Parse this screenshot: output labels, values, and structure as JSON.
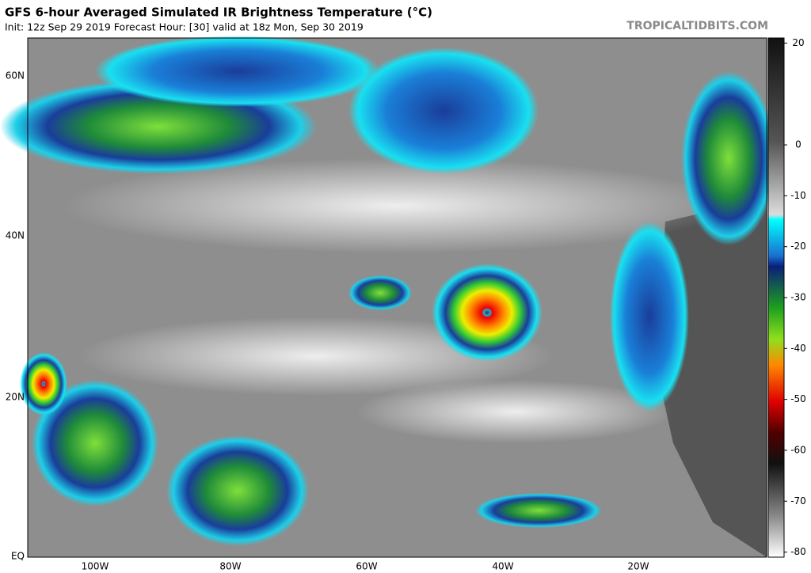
{
  "header": {
    "title": "GFS 6-hour Averaged Simulated IR Brightness Temperature (°C)",
    "subtitle": "Init: 12z Sep 29 2019   Forecast Hour: [30]   valid at 18z Mon, Sep 30 2019",
    "watermark": "TROPICALTIDBITS.COM"
  },
  "map": {
    "lat_labels": [
      "60N",
      "40N",
      "20N",
      "EQ"
    ],
    "lon_labels": [
      "100W",
      "80W",
      "60W",
      "40W",
      "20W"
    ]
  },
  "colorbar": {
    "range": [
      21,
      -81
    ],
    "ticks": [
      20,
      0,
      -10,
      -20,
      -30,
      -40,
      -50,
      -60,
      -70,
      -80
    ]
  }
}
